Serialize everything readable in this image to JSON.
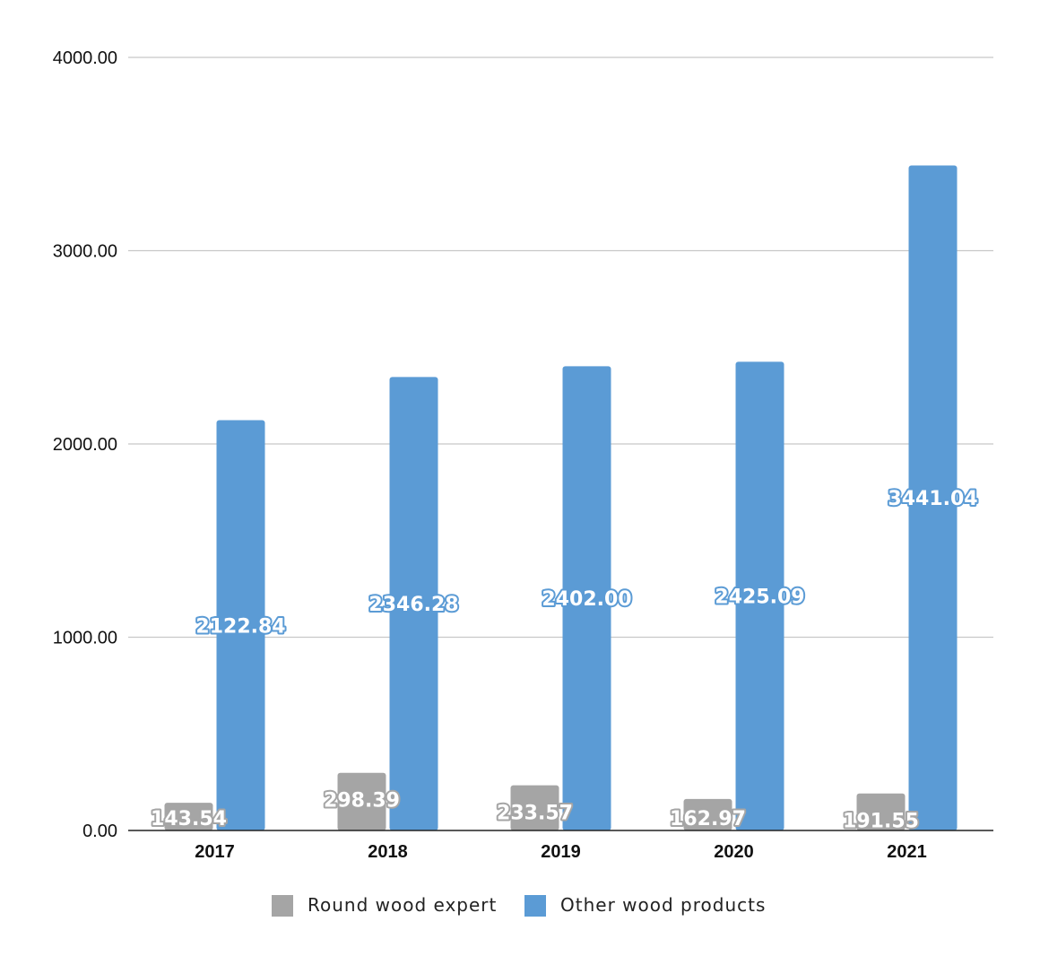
{
  "chart_data": {
    "type": "bar",
    "categories": [
      "2017",
      "2018",
      "2019",
      "2020",
      "2021"
    ],
    "series": [
      {
        "name": "Round wood expert",
        "values": [
          143.54,
          298.39,
          233.57,
          162.97,
          191.55
        ],
        "labels": [
          "143.54",
          "298.39",
          "233.57",
          "162.97",
          "191.55"
        ],
        "color": "#a5a5a5"
      },
      {
        "name": "Other wood products",
        "values": [
          2122.84,
          2346.28,
          2402.0,
          2425.09,
          3441.04
        ],
        "labels": [
          "2122.84",
          "2346.28",
          "2402.00",
          "2425.09",
          "3441.04"
        ],
        "color": "#5b9bd5"
      }
    ],
    "yticks": [
      "0.00",
      "1000.00",
      "2000.00",
      "3000.00",
      "4000.00"
    ],
    "ylim": [
      0,
      4000
    ],
    "grid": true,
    "legend": "bottom",
    "title": "",
    "xlabel": "",
    "ylabel": ""
  }
}
